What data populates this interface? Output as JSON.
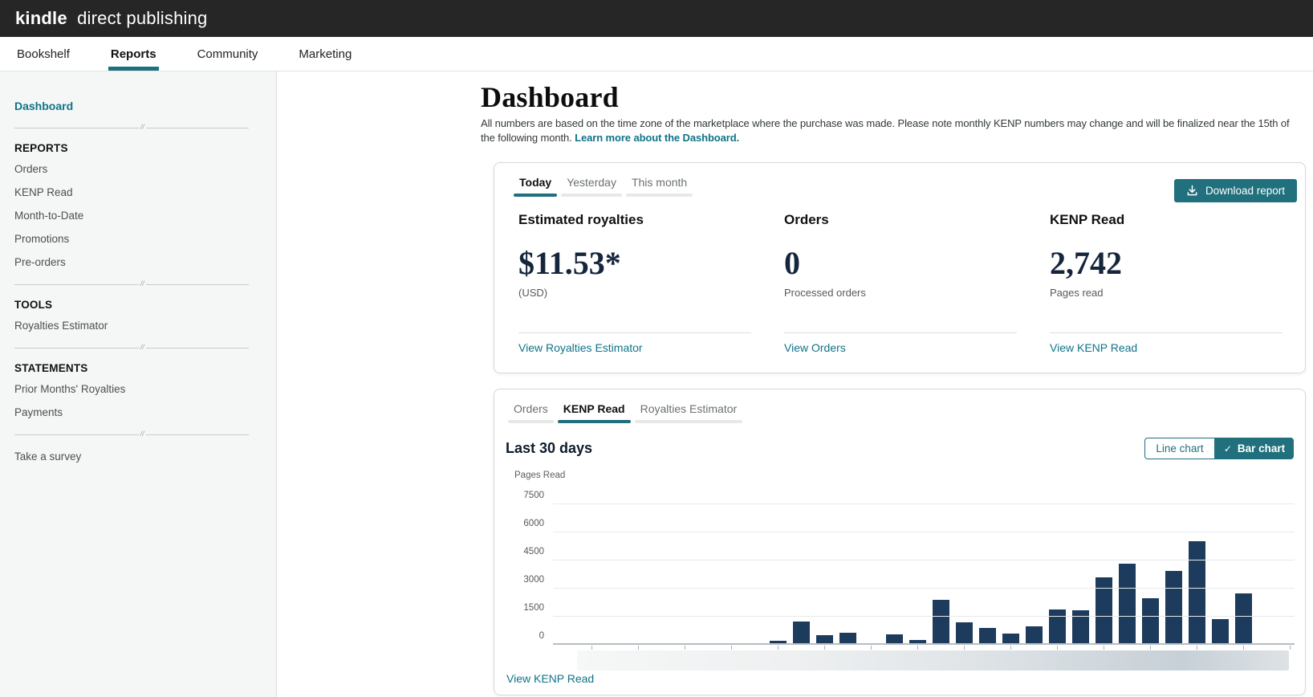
{
  "header": {
    "logo_bold": "kindle",
    "logo_rest": "direct publishing"
  },
  "nav": {
    "items": [
      {
        "label": "Bookshelf",
        "active": false
      },
      {
        "label": "Reports",
        "active": true
      },
      {
        "label": "Community",
        "active": false
      },
      {
        "label": "Marketing",
        "active": false
      }
    ]
  },
  "sidebar": {
    "dashboard": "Dashboard",
    "sections": [
      {
        "heading": "REPORTS",
        "items": [
          "Orders",
          "KENP Read",
          "Month-to-Date",
          "Promotions",
          "Pre-orders"
        ]
      },
      {
        "heading": "TOOLS",
        "items": [
          "Royalties Estimator"
        ]
      },
      {
        "heading": "STATEMENTS",
        "items": [
          "Prior Months' Royalties",
          "Payments"
        ]
      }
    ],
    "survey": "Take a survey"
  },
  "main": {
    "title": "Dashboard",
    "description": "All numbers are based on the time zone of the marketplace where the purchase was made. Please note monthly KENP numbers may change and will be finalized near the 15th of the following month.",
    "learn_more": "Learn more about the Dashboard.",
    "summary_card": {
      "tabs": [
        "Today",
        "Yesterday",
        "This month"
      ],
      "active_tab": "Today",
      "download_label": "Download report",
      "stats": [
        {
          "title": "Estimated royalties",
          "value": "$11.53*",
          "sub": "(USD)",
          "link": "View Royalties Estimator"
        },
        {
          "title": "Orders",
          "value": "0",
          "sub": "Processed orders",
          "link": "View Orders"
        },
        {
          "title": "KENP Read",
          "value": "2,742",
          "sub": "Pages read",
          "link": "View KENP Read"
        }
      ]
    },
    "chart_card": {
      "tabs": [
        "Orders",
        "KENP Read",
        "Royalties Estimator"
      ],
      "active_tab": "KENP Read",
      "heading": "Last 30 days",
      "toggle": {
        "line_label": "Line chart",
        "bar_label": "Bar chart",
        "active": "Bar chart",
        "check_icon": "✓"
      },
      "footer_link": "View KENP Read"
    }
  },
  "chart_data": {
    "type": "bar",
    "title": "Last 30 days",
    "ylabel": "Pages Read",
    "ylim": [
      0,
      7500
    ],
    "yticks": [
      0,
      1500,
      3000,
      4500,
      6000,
      7500
    ],
    "grid": true,
    "days": 30,
    "x_labels_blurred": true,
    "values": [
      0,
      0,
      0,
      0,
      0,
      0,
      0,
      0,
      0,
      150,
      1200,
      470,
      600,
      0,
      510,
      200,
      2350,
      1150,
      860,
      560,
      940,
      1850,
      1800,
      3550,
      4300,
      2450,
      3900,
      5480,
      1330,
      2700
    ]
  },
  "colors": {
    "accent_teal": "#20707d",
    "link_teal": "#0f7389",
    "bar_navy": "#1d3b5c",
    "header_bg": "#262626"
  }
}
